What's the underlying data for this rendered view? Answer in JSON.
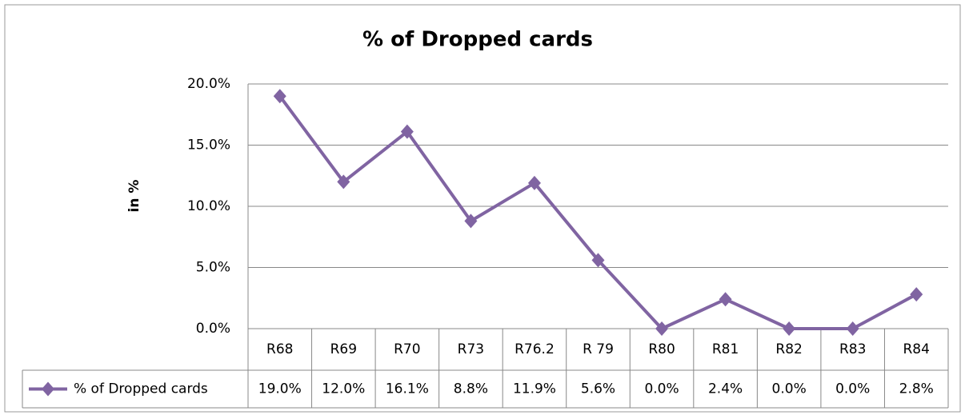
{
  "chart_data": {
    "type": "line",
    "title": "% of Dropped cards",
    "y_label": "in %",
    "categories": [
      "R68",
      "R69",
      "R70",
      "R73",
      "R76.2",
      "R 79",
      "R80",
      "R81",
      "R82",
      "R83",
      "R84"
    ],
    "series": [
      {
        "name": "% of Dropped cards",
        "color": "#8064a2",
        "values": [
          19.0,
          12.0,
          16.1,
          8.8,
          11.9,
          5.6,
          0.0,
          2.4,
          0.0,
          0.0,
          2.8
        ],
        "value_labels": [
          "19.0%",
          "12.0%",
          "16.1%",
          "8.8%",
          "11.9%",
          "5.6%",
          "0.0%",
          "2.4%",
          "0.0%",
          "0.0%",
          "2.8%"
        ]
      }
    ],
    "ylim": [
      0,
      20
    ],
    "yticks": [
      {
        "value": 0,
        "label": "0.0%"
      },
      {
        "value": 5,
        "label": "5.0%"
      },
      {
        "value": 10,
        "label": "10.0%"
      },
      {
        "value": 15,
        "label": "15.0%"
      },
      {
        "value": 20,
        "label": "20.0%"
      }
    ],
    "grid": true,
    "data_table": true
  }
}
